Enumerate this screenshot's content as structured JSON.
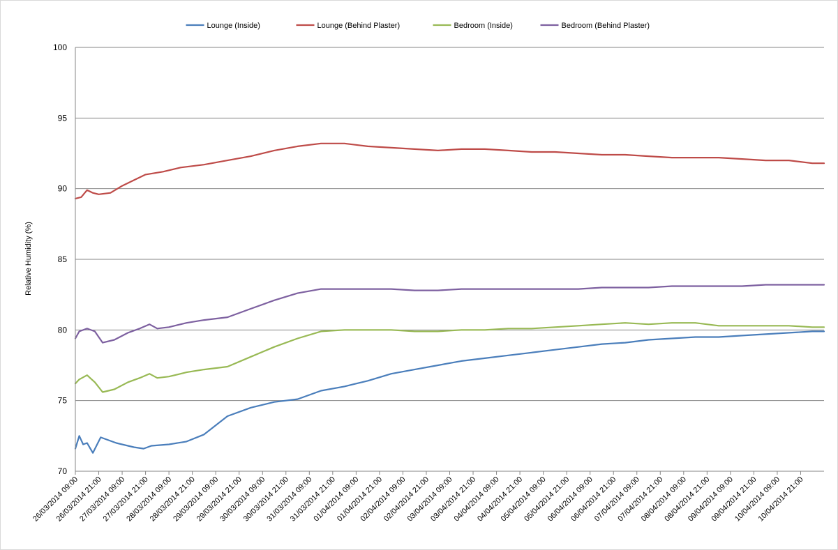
{
  "chart_data": {
    "type": "line",
    "title": "",
    "xlabel": "",
    "ylabel": "Relative Humidity (%)",
    "ylim": [
      70,
      100
    ],
    "yticks": [
      70,
      75,
      80,
      85,
      90,
      95,
      100
    ],
    "y_grid": true,
    "legend_position": "top",
    "x_range": [
      "26/03/2014 09:00",
      "11/04/2014 09:00"
    ],
    "xtick_labels": [
      "26/03/2014 09:00",
      "26/03/2014 21:00",
      "27/03/2014 09:00",
      "27/03/2014 21:00",
      "28/03/2014 09:00",
      "28/03/2014 21:00",
      "29/03/2014 09:00",
      "29/03/2014 21:00",
      "30/03/2014 09:00",
      "30/03/2014 21:00",
      "31/03/2014 09:00",
      "31/03/2014 21:00",
      "01/04/2014 09:00",
      "01/04/2014 21:00",
      "02/04/2014 09:00",
      "02/04/2014 21:00",
      "03/04/2014 09:00",
      "03/04/2014 21:00",
      "04/04/2014 09:00",
      "04/04/2014 21:00",
      "05/04/2014 09:00",
      "05/04/2014 21:00",
      "06/04/2014 09:00",
      "06/04/2014 21:00",
      "07/04/2014 09:00",
      "07/04/2014 21:00",
      "08/04/2014 09:00",
      "08/04/2014 21:00",
      "09/04/2014 09:00",
      "09/04/2014 21:00",
      "10/04/2014 09:00",
      "10/04/2014 21:00"
    ],
    "series": [
      {
        "name": "Lounge (Inside)",
        "color": "#4a7ebb",
        "points": [
          [
            "26/03/2014 09:00",
            71.6
          ],
          [
            "26/03/2014 11:00",
            72.5
          ],
          [
            "26/03/2014 13:00",
            71.9
          ],
          [
            "26/03/2014 15:00",
            72.0
          ],
          [
            "26/03/2014 18:00",
            71.3
          ],
          [
            "26/03/2014 22:00",
            72.4
          ],
          [
            "27/03/2014 06:00",
            72.0
          ],
          [
            "27/03/2014 15:00",
            71.7
          ],
          [
            "27/03/2014 20:00",
            71.6
          ],
          [
            "28/03/2014 00:00",
            71.8
          ],
          [
            "28/03/2014 09:00",
            71.9
          ],
          [
            "28/03/2014 18:00",
            72.1
          ],
          [
            "29/03/2014 03:00",
            72.6
          ],
          [
            "29/03/2014 15:00",
            73.9
          ],
          [
            "30/03/2014 03:00",
            74.5
          ],
          [
            "30/03/2014 15:00",
            74.9
          ],
          [
            "31/03/2014 03:00",
            75.1
          ],
          [
            "31/03/2014 15:00",
            75.7
          ],
          [
            "01/04/2014 03:00",
            76.0
          ],
          [
            "01/04/2014 15:00",
            76.4
          ],
          [
            "02/04/2014 03:00",
            76.9
          ],
          [
            "02/04/2014 15:00",
            77.2
          ],
          [
            "03/04/2014 03:00",
            77.5
          ],
          [
            "03/04/2014 15:00",
            77.8
          ],
          [
            "04/04/2014 03:00",
            78.0
          ],
          [
            "04/04/2014 15:00",
            78.2
          ],
          [
            "05/04/2014 03:00",
            78.4
          ],
          [
            "05/04/2014 15:00",
            78.6
          ],
          [
            "06/04/2014 03:00",
            78.8
          ],
          [
            "06/04/2014 15:00",
            79.0
          ],
          [
            "07/04/2014 03:00",
            79.1
          ],
          [
            "07/04/2014 15:00",
            79.3
          ],
          [
            "08/04/2014 03:00",
            79.4
          ],
          [
            "08/04/2014 15:00",
            79.5
          ],
          [
            "09/04/2014 03:00",
            79.5
          ],
          [
            "09/04/2014 15:00",
            79.6
          ],
          [
            "10/04/2014 03:00",
            79.7
          ],
          [
            "10/04/2014 15:00",
            79.8
          ],
          [
            "11/04/2014 03:00",
            79.9
          ],
          [
            "11/04/2014 09:00",
            79.9
          ]
        ]
      },
      {
        "name": "Lounge (Behind Plaster)",
        "color": "#be4b48",
        "points": [
          [
            "26/03/2014 09:00",
            89.3
          ],
          [
            "26/03/2014 12:00",
            89.4
          ],
          [
            "26/03/2014 15:00",
            89.9
          ],
          [
            "26/03/2014 18:00",
            89.7
          ],
          [
            "26/03/2014 21:00",
            89.6
          ],
          [
            "27/03/2014 03:00",
            89.7
          ],
          [
            "27/03/2014 09:00",
            90.2
          ],
          [
            "27/03/2014 15:00",
            90.6
          ],
          [
            "27/03/2014 21:00",
            91.0
          ],
          [
            "28/03/2014 06:00",
            91.2
          ],
          [
            "28/03/2014 15:00",
            91.5
          ],
          [
            "29/03/2014 03:00",
            91.7
          ],
          [
            "29/03/2014 15:00",
            92.0
          ],
          [
            "30/03/2014 03:00",
            92.3
          ],
          [
            "30/03/2014 15:00",
            92.7
          ],
          [
            "31/03/2014 03:00",
            93.0
          ],
          [
            "31/03/2014 15:00",
            93.2
          ],
          [
            "01/04/2014 03:00",
            93.2
          ],
          [
            "01/04/2014 15:00",
            93.0
          ],
          [
            "02/04/2014 03:00",
            92.9
          ],
          [
            "02/04/2014 15:00",
            92.8
          ],
          [
            "03/04/2014 03:00",
            92.7
          ],
          [
            "03/04/2014 15:00",
            92.8
          ],
          [
            "04/04/2014 03:00",
            92.8
          ],
          [
            "04/04/2014 15:00",
            92.7
          ],
          [
            "05/04/2014 03:00",
            92.6
          ],
          [
            "05/04/2014 15:00",
            92.6
          ],
          [
            "06/04/2014 03:00",
            92.5
          ],
          [
            "06/04/2014 15:00",
            92.4
          ],
          [
            "07/04/2014 03:00",
            92.4
          ],
          [
            "07/04/2014 15:00",
            92.3
          ],
          [
            "08/04/2014 03:00",
            92.2
          ],
          [
            "08/04/2014 15:00",
            92.2
          ],
          [
            "09/04/2014 03:00",
            92.2
          ],
          [
            "09/04/2014 15:00",
            92.1
          ],
          [
            "10/04/2014 03:00",
            92.0
          ],
          [
            "10/04/2014 15:00",
            92.0
          ],
          [
            "11/04/2014 03:00",
            91.8
          ],
          [
            "11/04/2014 09:00",
            91.8
          ]
        ]
      },
      {
        "name": "Bedroom (Inside)",
        "color": "#98b954",
        "points": [
          [
            "26/03/2014 09:00",
            76.2
          ],
          [
            "26/03/2014 11:00",
            76.5
          ],
          [
            "26/03/2014 15:00",
            76.8
          ],
          [
            "26/03/2014 19:00",
            76.3
          ],
          [
            "26/03/2014 23:00",
            75.6
          ],
          [
            "27/03/2014 05:00",
            75.8
          ],
          [
            "27/03/2014 12:00",
            76.3
          ],
          [
            "27/03/2014 18:00",
            76.6
          ],
          [
            "27/03/2014 23:00",
            76.9
          ],
          [
            "28/03/2014 03:00",
            76.6
          ],
          [
            "28/03/2014 09:00",
            76.7
          ],
          [
            "28/03/2014 18:00",
            77.0
          ],
          [
            "29/03/2014 03:00",
            77.2
          ],
          [
            "29/03/2014 15:00",
            77.4
          ],
          [
            "30/03/2014 03:00",
            78.1
          ],
          [
            "30/03/2014 15:00",
            78.8
          ],
          [
            "31/03/2014 03:00",
            79.4
          ],
          [
            "31/03/2014 15:00",
            79.9
          ],
          [
            "01/04/2014 03:00",
            80.0
          ],
          [
            "01/04/2014 15:00",
            80.0
          ],
          [
            "02/04/2014 03:00",
            80.0
          ],
          [
            "02/04/2014 15:00",
            79.9
          ],
          [
            "03/04/2014 03:00",
            79.9
          ],
          [
            "03/04/2014 15:00",
            80.0
          ],
          [
            "04/04/2014 03:00",
            80.0
          ],
          [
            "04/04/2014 15:00",
            80.1
          ],
          [
            "05/04/2014 03:00",
            80.1
          ],
          [
            "05/04/2014 15:00",
            80.2
          ],
          [
            "06/04/2014 03:00",
            80.3
          ],
          [
            "06/04/2014 15:00",
            80.4
          ],
          [
            "07/04/2014 03:00",
            80.5
          ],
          [
            "07/04/2014 15:00",
            80.4
          ],
          [
            "08/04/2014 03:00",
            80.5
          ],
          [
            "08/04/2014 15:00",
            80.5
          ],
          [
            "09/04/2014 03:00",
            80.3
          ],
          [
            "09/04/2014 15:00",
            80.3
          ],
          [
            "10/04/2014 03:00",
            80.3
          ],
          [
            "10/04/2014 15:00",
            80.3
          ],
          [
            "11/04/2014 03:00",
            80.2
          ],
          [
            "11/04/2014 09:00",
            80.2
          ]
        ]
      },
      {
        "name": "Bedroom (Behind Plaster)",
        "color": "#7d60a0",
        "points": [
          [
            "26/03/2014 09:00",
            79.4
          ],
          [
            "26/03/2014 11:00",
            79.9
          ],
          [
            "26/03/2014 15:00",
            80.1
          ],
          [
            "26/03/2014 19:00",
            79.9
          ],
          [
            "26/03/2014 23:00",
            79.1
          ],
          [
            "27/03/2014 05:00",
            79.3
          ],
          [
            "27/03/2014 12:00",
            79.8
          ],
          [
            "27/03/2014 18:00",
            80.1
          ],
          [
            "27/03/2014 23:00",
            80.4
          ],
          [
            "28/03/2014 03:00",
            80.1
          ],
          [
            "28/03/2014 09:00",
            80.2
          ],
          [
            "28/03/2014 18:00",
            80.5
          ],
          [
            "29/03/2014 03:00",
            80.7
          ],
          [
            "29/03/2014 15:00",
            80.9
          ],
          [
            "30/03/2014 03:00",
            81.5
          ],
          [
            "30/03/2014 15:00",
            82.1
          ],
          [
            "31/03/2014 03:00",
            82.6
          ],
          [
            "31/03/2014 15:00",
            82.9
          ],
          [
            "01/04/2014 03:00",
            82.9
          ],
          [
            "01/04/2014 15:00",
            82.9
          ],
          [
            "02/04/2014 03:00",
            82.9
          ],
          [
            "02/04/2014 15:00",
            82.8
          ],
          [
            "03/04/2014 03:00",
            82.8
          ],
          [
            "03/04/2014 15:00",
            82.9
          ],
          [
            "04/04/2014 03:00",
            82.9
          ],
          [
            "04/04/2014 15:00",
            82.9
          ],
          [
            "05/04/2014 03:00",
            82.9
          ],
          [
            "05/04/2014 15:00",
            82.9
          ],
          [
            "06/04/2014 03:00",
            82.9
          ],
          [
            "06/04/2014 15:00",
            83.0
          ],
          [
            "07/04/2014 03:00",
            83.0
          ],
          [
            "07/04/2014 15:00",
            83.0
          ],
          [
            "08/04/2014 03:00",
            83.1
          ],
          [
            "08/04/2014 15:00",
            83.1
          ],
          [
            "09/04/2014 03:00",
            83.1
          ],
          [
            "09/04/2014 15:00",
            83.1
          ],
          [
            "10/04/2014 03:00",
            83.2
          ],
          [
            "10/04/2014 15:00",
            83.2
          ],
          [
            "11/04/2014 03:00",
            83.2
          ],
          [
            "11/04/2014 09:00",
            83.2
          ]
        ]
      }
    ]
  }
}
